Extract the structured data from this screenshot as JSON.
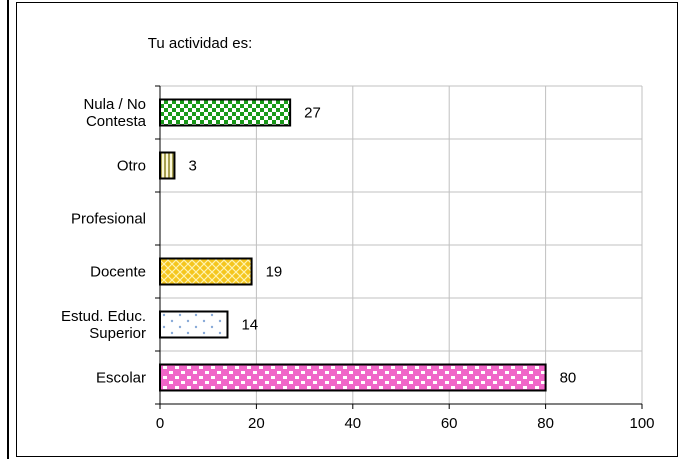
{
  "chart_data": {
    "type": "bar",
    "orientation": "horizontal",
    "title": "Tu actividad es:",
    "categories": [
      [
        "Nula / No",
        "Contesta"
      ],
      [
        "Otro"
      ],
      [
        "Profesional"
      ],
      [
        "Docente"
      ],
      [
        "Estud. Educ.",
        "Superior"
      ],
      [
        "Escolar"
      ]
    ],
    "values": [
      27,
      3,
      null,
      19,
      14,
      80
    ],
    "data_labels": [
      "27",
      "3",
      "",
      "19",
      "14",
      "80"
    ],
    "xlim": [
      0,
      100
    ],
    "x_ticks": [
      0,
      20,
      40,
      60,
      80,
      100
    ],
    "grid": true,
    "legend": "none",
    "bar_patterns": [
      "checker-green",
      "stripes-yellow",
      "none",
      "lattice-gold",
      "dots-blue",
      "bricks-pink"
    ],
    "colors": {
      "checker-green": "#1a9a1a",
      "stripes-yellow": "#d8d060",
      "lattice-gold": "#f0c020",
      "dots-blue": "#88aad8",
      "bricks-pink": "#f060c8"
    }
  }
}
